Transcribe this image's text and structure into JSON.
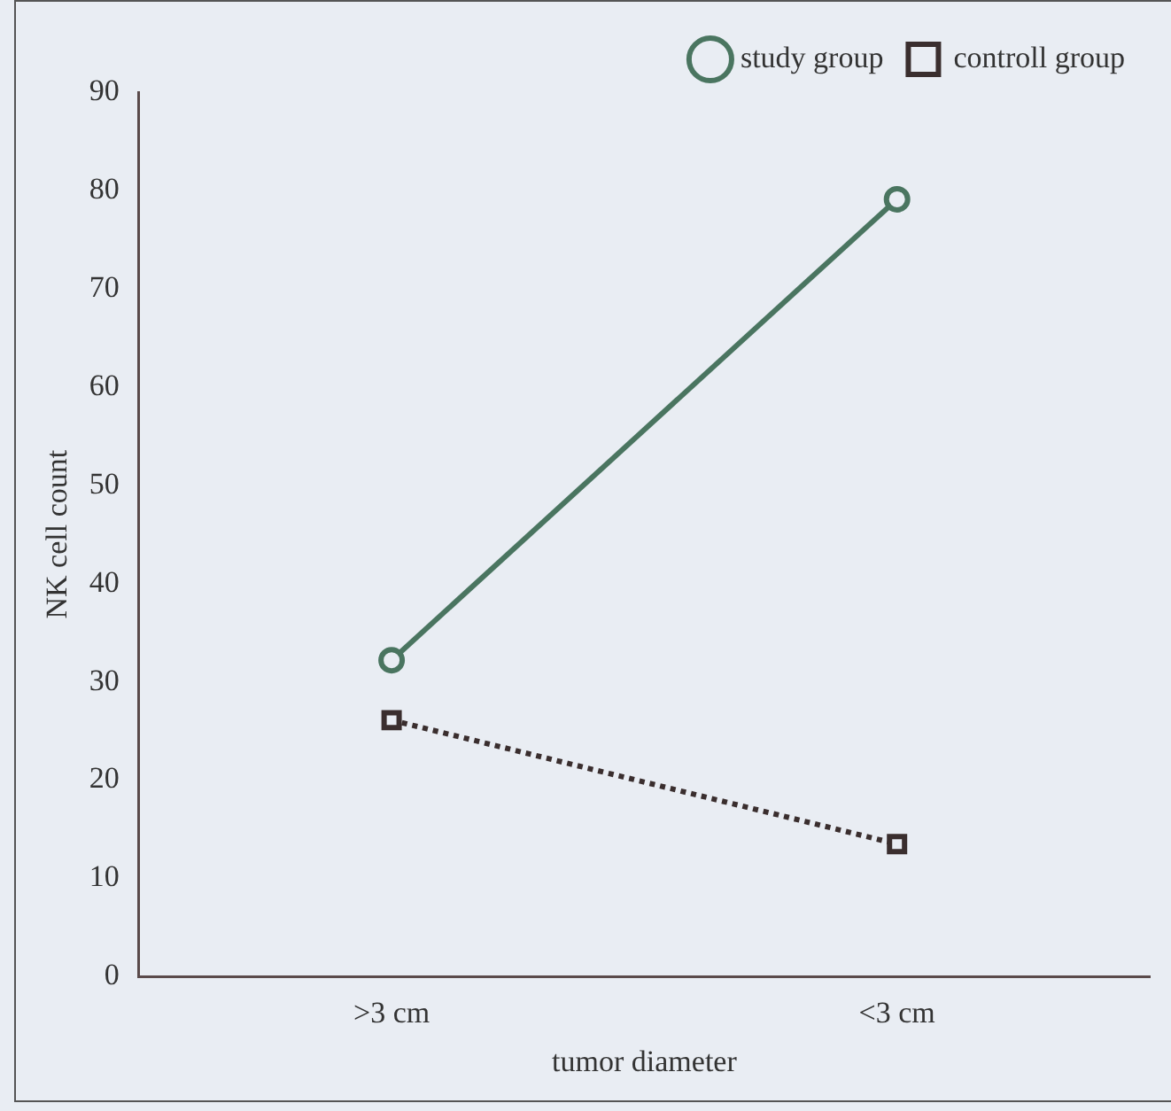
{
  "chart_data": {
    "type": "line",
    "xlabel": "tumor diameter",
    "ylabel": "NK cell count",
    "categories": [
      ">3 cm",
      "<3 cm"
    ],
    "series": [
      {
        "name": "study group",
        "color": "#4a7560",
        "values": [
          32.2,
          79.1
        ],
        "marker": "circle",
        "line_style": "solid"
      },
      {
        "name": "controll group",
        "color": "#3a2e2e",
        "values": [
          26.1,
          13.5
        ],
        "marker": "square",
        "line_style": "dotted"
      }
    ],
    "ylim": [
      0,
      90
    ],
    "yticks": [
      0,
      10,
      20,
      30,
      40,
      50,
      60,
      70,
      80,
      90
    ],
    "grid": false,
    "legend": "top right"
  }
}
